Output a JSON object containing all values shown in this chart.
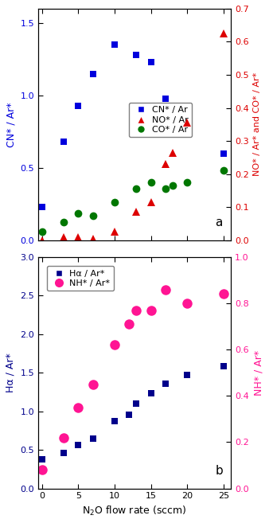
{
  "panel_a": {
    "CN_x": [
      0,
      3,
      5,
      7,
      10,
      13,
      15,
      17,
      18,
      20,
      25
    ],
    "CN_y": [
      0.23,
      0.68,
      0.93,
      1.15,
      1.35,
      1.28,
      1.23,
      0.98,
      0.88,
      0.73,
      0.6
    ],
    "NO_x": [
      0,
      3,
      5,
      7,
      10,
      13,
      15,
      17,
      18,
      20,
      25
    ],
    "NO_y": [
      0.0,
      0.01,
      0.01,
      0.005,
      0.025,
      0.085,
      0.115,
      0.23,
      0.265,
      0.355,
      0.625
    ],
    "CO_x": [
      0,
      3,
      5,
      7,
      10,
      13,
      15,
      17,
      18,
      20,
      25
    ],
    "CO_y": [
      0.025,
      0.055,
      0.08,
      0.075,
      0.115,
      0.155,
      0.175,
      0.155,
      0.165,
      0.175,
      0.21
    ],
    "CN_color": "#0000dd",
    "NO_color": "#dd0000",
    "CO_color": "#007700",
    "ylabel_left": "CN* / Ar*",
    "ylabel_right": "NO* / Ar* and CO* / Ar*",
    "ylim_left": [
      0,
      1.6
    ],
    "ylim_right": [
      0,
      0.7
    ],
    "yticks_left": [
      0.0,
      0.5,
      1.0,
      1.5
    ],
    "yticks_right": [
      0.0,
      0.1,
      0.2,
      0.3,
      0.4,
      0.5,
      0.6,
      0.7
    ],
    "label": "a",
    "legend_CN": "CN* / Ar",
    "legend_NO": "NO* / Ar",
    "legend_CO": "CO* / Ar"
  },
  "panel_b": {
    "Ha_x": [
      0,
      3,
      5,
      7,
      10,
      12,
      13,
      15,
      17,
      20,
      25
    ],
    "Ha_y": [
      0.38,
      0.46,
      0.56,
      0.65,
      0.87,
      0.96,
      1.1,
      1.23,
      1.36,
      1.47,
      1.58
    ],
    "NH_x": [
      0,
      3,
      5,
      7,
      10,
      12,
      13,
      15,
      17,
      20,
      25
    ],
    "NH_y": [
      0.08,
      0.22,
      0.35,
      0.45,
      0.62,
      0.71,
      0.77,
      0.77,
      0.86,
      0.8,
      0.84
    ],
    "Ha_color": "#00008B",
    "NH_color": "#FF1493",
    "ylabel_left": "Hα / Ar*",
    "ylabel_right": "NH* / Ar*",
    "ylim_left": [
      0,
      3.0
    ],
    "ylim_right": [
      0,
      1.0
    ],
    "yticks_left": [
      0.0,
      0.5,
      1.0,
      1.5,
      2.0,
      2.5,
      3.0
    ],
    "yticks_right": [
      0.0,
      0.2,
      0.4,
      0.6,
      0.8,
      1.0
    ],
    "label": "b",
    "legend_Ha": "Hα / Ar*",
    "legend_NH": "NH* / Ar*"
  },
  "xlabel": "N$_2$O flow rate (sccm)",
  "xlim": [
    -0.5,
    26
  ],
  "xticks": [
    0,
    5,
    10,
    15,
    20,
    25
  ],
  "figsize": [
    3.38,
    6.57
  ],
  "dpi": 100
}
